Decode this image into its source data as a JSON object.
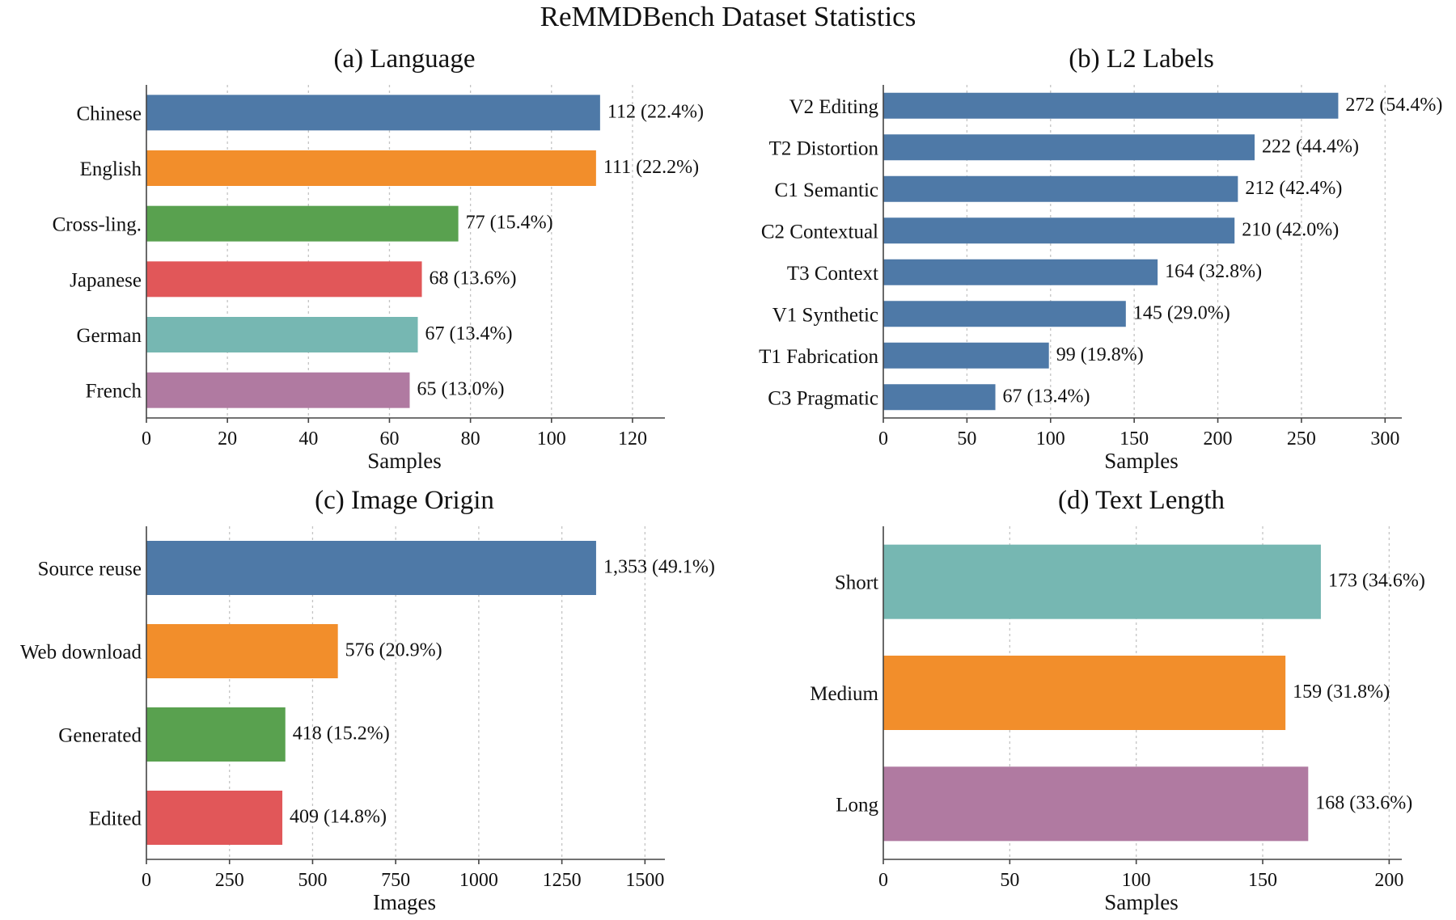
{
  "suptitle": "ReMMDBench Dataset Statistics",
  "chart_data": [
    {
      "type": "bar",
      "orientation": "horizontal",
      "title": "(a) Language",
      "xlabel": "Samples",
      "ylabel": "",
      "xlim": [
        0,
        128
      ],
      "xticks": [
        0,
        20,
        40,
        60,
        80,
        100,
        120
      ],
      "grid": true,
      "categories": [
        "Chinese",
        "English",
        "Cross-ling.",
        "Japanese",
        "German",
        "French"
      ],
      "values": [
        112,
        111,
        77,
        68,
        67,
        65
      ],
      "labels": [
        "112 (22.4%)",
        "111 (22.2%)",
        "77 (15.4%)",
        "68 (13.6%)",
        "67 (13.4%)",
        "65 (13.0%)"
      ],
      "colors": [
        "#4e79a7",
        "#f28e2b",
        "#59a14f",
        "#e15759",
        "#76b7b2",
        "#b07aa1"
      ]
    },
    {
      "type": "bar",
      "orientation": "horizontal",
      "title": "(b) L2 Labels",
      "xlabel": "Samples",
      "ylabel": "",
      "xlim": [
        0,
        310
      ],
      "xticks": [
        0,
        50,
        100,
        150,
        200,
        250,
        300
      ],
      "grid": true,
      "categories": [
        "V2 Editing",
        "T2 Distortion",
        "C1 Semantic",
        "C2 Contextual",
        "T3 Context",
        "V1 Synthetic",
        "T1 Fabrication",
        "C3 Pragmatic"
      ],
      "values": [
        272,
        222,
        212,
        210,
        164,
        145,
        99,
        67
      ],
      "labels": [
        "272 (54.4%)",
        "222 (44.4%)",
        "212 (42.4%)",
        "210 (42.0%)",
        "164 (32.8%)",
        "145 (29.0%)",
        "99 (19.8%)",
        "67 (13.4%)"
      ],
      "colors": [
        "#4e79a7",
        "#4e79a7",
        "#4e79a7",
        "#4e79a7",
        "#4e79a7",
        "#4e79a7",
        "#4e79a7",
        "#4e79a7"
      ]
    },
    {
      "type": "bar",
      "orientation": "horizontal",
      "title": "(c) Image Origin",
      "xlabel": "Images",
      "ylabel": "",
      "xlim": [
        0,
        1560
      ],
      "xticks": [
        0,
        250,
        500,
        750,
        1000,
        1250,
        1500
      ],
      "grid": true,
      "categories": [
        "Source reuse",
        "Web download",
        "Generated",
        "Edited"
      ],
      "values": [
        1353,
        576,
        418,
        409
      ],
      "labels": [
        "1,353 (49.1%)",
        "576 (20.9%)",
        "418 (15.2%)",
        "409 (14.8%)"
      ],
      "colors": [
        "#4e79a7",
        "#f28e2b",
        "#59a14f",
        "#e15759"
      ]
    },
    {
      "type": "bar",
      "orientation": "horizontal",
      "title": "(d) Text Length",
      "xlabel": "Samples",
      "ylabel": "",
      "xlim": [
        0,
        205
      ],
      "xticks": [
        0,
        50,
        100,
        150,
        200
      ],
      "grid": true,
      "categories": [
        "Short",
        "Medium",
        "Long"
      ],
      "values": [
        173,
        159,
        168
      ],
      "labels": [
        "173 (34.6%)",
        "159 (31.8%)",
        "168 (33.6%)"
      ],
      "colors": [
        "#76b7b2",
        "#f28e2b",
        "#b07aa1"
      ]
    }
  ]
}
